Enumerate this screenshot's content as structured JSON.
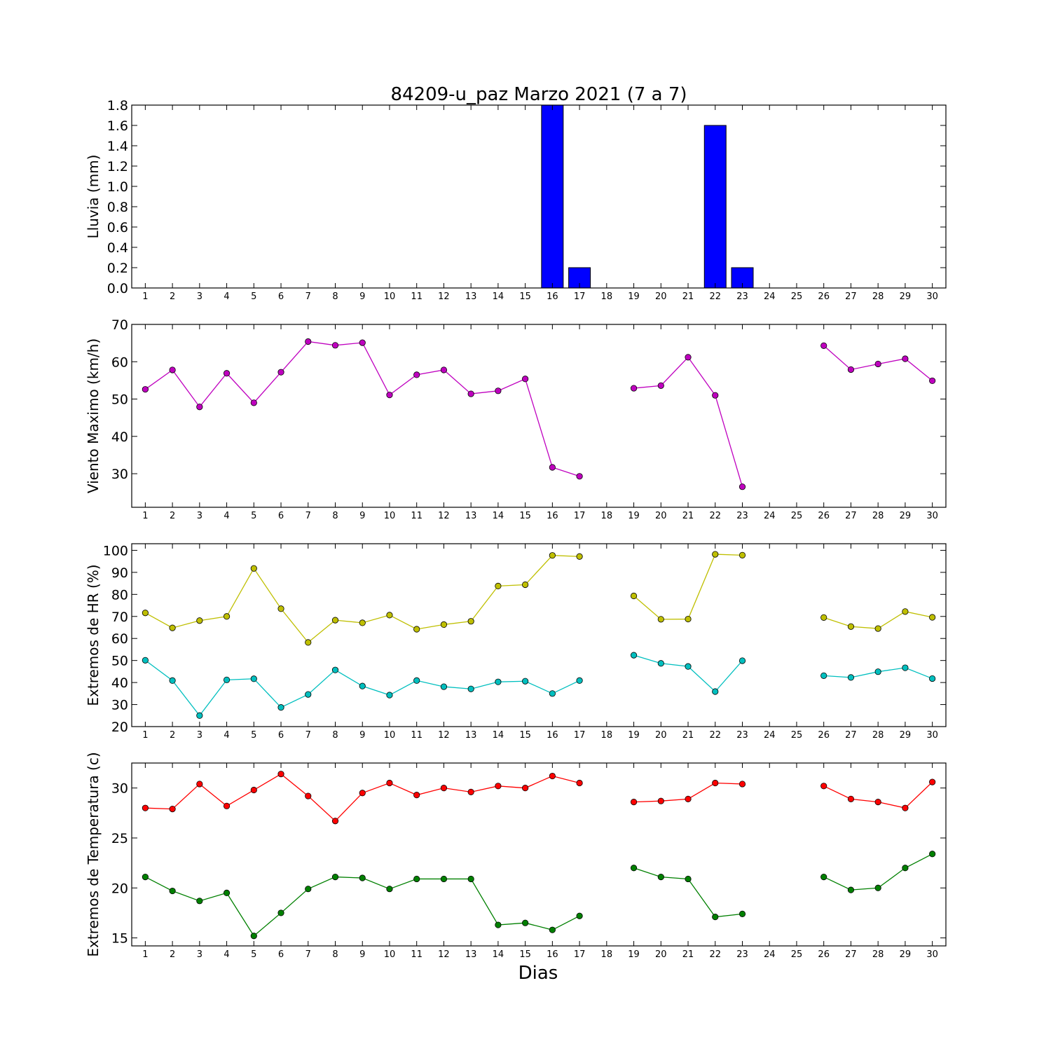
{
  "chart_data": [
    {
      "type": "bar",
      "title": "84209-u_paz Marzo 2021  (7 a 7)",
      "ylabel": "Lluvia (mm)",
      "xlabel": "",
      "ylim": [
        0,
        1.8
      ],
      "yticks": [
        0.0,
        0.2,
        0.4,
        0.6,
        0.8,
        1.0,
        1.2,
        1.4,
        1.6,
        1.8
      ],
      "ytick_labels": [
        "0.0",
        "0.2",
        "0.4",
        "0.6",
        "0.8",
        "1.0",
        "1.2",
        "1.4",
        "1.6",
        "1.8"
      ],
      "xticks": [
        1,
        2,
        3,
        4,
        5,
        6,
        7,
        8,
        9,
        10,
        11,
        12,
        13,
        14,
        15,
        16,
        17,
        18,
        19,
        20,
        21,
        22,
        23,
        24,
        25,
        26,
        27,
        28,
        29,
        30
      ],
      "x": [
        1,
        2,
        3,
        4,
        5,
        6,
        7,
        8,
        9,
        10,
        11,
        12,
        13,
        14,
        15,
        16,
        17,
        18,
        19,
        20,
        21,
        22,
        23,
        24,
        25,
        26,
        27,
        28,
        29,
        30
      ],
      "values": [
        0,
        0,
        0,
        0,
        0,
        0,
        0,
        0,
        0,
        0,
        0,
        0,
        0,
        0,
        0,
        1.8,
        0.2,
        0,
        0,
        0,
        0,
        1.6,
        0.2,
        0,
        0,
        0,
        0,
        0,
        0,
        0
      ],
      "color": "#0000ff"
    },
    {
      "type": "line",
      "title": "",
      "ylabel": "Viento Maximo (km/h)",
      "xlabel": "",
      "ylim": [
        21,
        70
      ],
      "yticks": [
        30,
        40,
        50,
        60,
        70
      ],
      "ytick_labels": [
        "30",
        "40",
        "50",
        "60",
        "70"
      ],
      "xticks": [
        1,
        2,
        3,
        4,
        5,
        6,
        7,
        8,
        9,
        10,
        11,
        12,
        13,
        14,
        15,
        16,
        17,
        18,
        19,
        20,
        21,
        22,
        23,
        24,
        25,
        26,
        27,
        28,
        29,
        30
      ],
      "x": [
        1,
        2,
        3,
        4,
        5,
        6,
        7,
        8,
        9,
        10,
        11,
        12,
        13,
        14,
        15,
        16,
        17,
        18,
        19,
        20,
        21,
        22,
        23,
        24,
        25,
        26,
        27,
        28,
        29,
        30
      ],
      "series": [
        {
          "color": "#bf00bf",
          "values": [
            52.6,
            57.8,
            47.9,
            56.9,
            49.0,
            57.2,
            65.4,
            64.4,
            65.1,
            51.1,
            56.5,
            57.8,
            51.4,
            52.2,
            55.4,
            31.7,
            29.3,
            null,
            52.9,
            53.6,
            61.2,
            51.0,
            26.5,
            null,
            null,
            64.3,
            57.9,
            59.4,
            60.8,
            54.9
          ]
        }
      ]
    },
    {
      "type": "line",
      "title": "",
      "ylabel": "Extremos de HR (%)",
      "xlabel": "",
      "ylim": [
        20,
        103
      ],
      "yticks": [
        20,
        30,
        40,
        50,
        60,
        70,
        80,
        90,
        100
      ],
      "ytick_labels": [
        "20",
        "30",
        "40",
        "50",
        "60",
        "70",
        "80",
        "90",
        "100"
      ],
      "xticks": [
        1,
        2,
        3,
        4,
        5,
        6,
        7,
        8,
        9,
        10,
        11,
        12,
        13,
        14,
        15,
        16,
        17,
        18,
        19,
        20,
        21,
        22,
        23,
        24,
        25,
        26,
        27,
        28,
        29,
        30
      ],
      "x": [
        1,
        2,
        3,
        4,
        5,
        6,
        7,
        8,
        9,
        10,
        11,
        12,
        13,
        14,
        15,
        16,
        17,
        18,
        19,
        20,
        21,
        22,
        23,
        24,
        25,
        26,
        27,
        28,
        29,
        30
      ],
      "series": [
        {
          "color": "#bfbf00",
          "values": [
            71.6,
            64.8,
            68.1,
            70.0,
            91.8,
            73.5,
            58.2,
            68.3,
            67.1,
            70.6,
            64.2,
            66.3,
            67.8,
            83.8,
            84.4,
            97.7,
            97.2,
            null,
            79.3,
            68.7,
            68.8,
            98.2,
            97.8,
            null,
            null,
            69.5,
            65.4,
            64.5,
            72.2,
            69.6
          ]
        },
        {
          "color": "#00bfbf",
          "values": [
            50.1,
            40.9,
            25.0,
            41.2,
            41.7,
            28.7,
            34.6,
            45.7,
            38.4,
            34.3,
            40.9,
            38.1,
            37.1,
            40.3,
            40.6,
            35.0,
            40.9,
            null,
            52.4,
            48.7,
            47.3,
            35.9,
            49.9,
            null,
            null,
            43.1,
            42.3,
            44.9,
            46.7,
            41.8
          ]
        }
      ]
    },
    {
      "type": "line",
      "title": "",
      "ylabel": "Extremos de Temperatura (c)",
      "xlabel": "Dias",
      "ylim": [
        14.2,
        32.5
      ],
      "yticks": [
        15,
        20,
        25,
        30
      ],
      "ytick_labels": [
        "15",
        "20",
        "25",
        "30"
      ],
      "xticks": [
        1,
        2,
        3,
        4,
        5,
        6,
        7,
        8,
        9,
        10,
        11,
        12,
        13,
        14,
        15,
        16,
        17,
        18,
        19,
        20,
        21,
        22,
        23,
        24,
        25,
        26,
        27,
        28,
        29,
        30
      ],
      "x": [
        1,
        2,
        3,
        4,
        5,
        6,
        7,
        8,
        9,
        10,
        11,
        12,
        13,
        14,
        15,
        16,
        17,
        18,
        19,
        20,
        21,
        22,
        23,
        24,
        25,
        26,
        27,
        28,
        29,
        30
      ],
      "series": [
        {
          "color": "#ff0000",
          "values": [
            28.0,
            27.9,
            30.4,
            28.2,
            29.8,
            31.4,
            29.2,
            26.7,
            29.5,
            30.5,
            29.3,
            30.0,
            29.6,
            30.2,
            30.0,
            31.2,
            30.5,
            null,
            28.6,
            28.7,
            28.9,
            30.5,
            30.4,
            null,
            null,
            30.2,
            28.9,
            28.6,
            28.0,
            30.6
          ]
        },
        {
          "color": "#008000",
          "values": [
            21.1,
            19.7,
            18.7,
            19.5,
            15.2,
            17.5,
            19.9,
            21.1,
            21.0,
            19.9,
            20.9,
            20.9,
            20.9,
            16.3,
            16.5,
            15.8,
            17.2,
            null,
            22.0,
            21.1,
            20.9,
            17.1,
            17.4,
            null,
            null,
            21.1,
            19.8,
            20.0,
            22.0,
            23.4
          ]
        }
      ]
    }
  ]
}
